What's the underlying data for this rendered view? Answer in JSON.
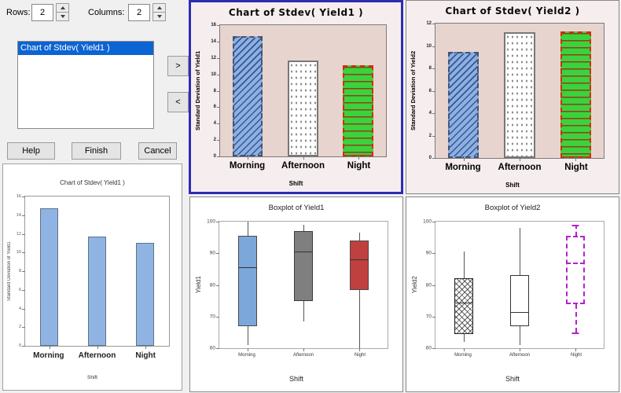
{
  "dialog": {
    "rows_label": "Rows:",
    "rows_value": "2",
    "columns_label": "Columns:",
    "columns_value": "2",
    "list_items": [
      {
        "label": "Chart of Stdev( Yield1 )",
        "selected": true
      }
    ],
    "move_right_label": ">",
    "move_left_label": "<",
    "help_label": "Help",
    "finish_label": "Finish",
    "cancel_label": "Cancel"
  },
  "colors": {
    "selection_border": "#2d2db0",
    "list_selection": "#0c64d2",
    "chart_panel_pink": "#f6edee",
    "plot_rose": "#e8d4cf",
    "bar_blue": "#8cb0e2",
    "bar_green": "#3bd23b",
    "bar_red_border": "#d42b10",
    "box_blue": "#7ba7da",
    "box_gray": "#7f7f7f",
    "box_red": "#c04040",
    "box_magenta": "#b81fd0",
    "preview_bar_blue": "#8fb4e3"
  },
  "chart_data": [
    {
      "id": "preview-bar-chart",
      "type": "bar",
      "variant": "preview",
      "title": "Chart of Stdev( Yield1 )",
      "xlabel": "Shift",
      "ylabel": "Standard Deviation of Yield1",
      "categories": [
        "Morning",
        "Afternoon",
        "Night"
      ],
      "values": [
        14.7,
        11.7,
        11.0
      ],
      "ylim": [
        0,
        16
      ],
      "ytick_step": 2,
      "bar_styles": [
        "solid-blue",
        "solid-blue",
        "solid-blue"
      ],
      "grid": false,
      "legend": "none"
    },
    {
      "id": "stdev-yield1",
      "type": "bar",
      "variant": "fancy",
      "selected": true,
      "title": "Chart of Stdev( Yield1 )",
      "xlabel": "Shift",
      "ylabel": "Standard Deviation of Yield1",
      "categories": [
        "Morning",
        "Afternoon",
        "Night"
      ],
      "values": [
        14.7,
        11.7,
        11.1
      ],
      "ylim": [
        0,
        16
      ],
      "ytick_step": 2,
      "bar_styles": [
        "hatch-blue",
        "dots-white",
        "stripes-green"
      ],
      "grid": false,
      "legend": "none"
    },
    {
      "id": "stdev-yield2",
      "type": "bar",
      "variant": "fancy",
      "title": "Chart of Stdev( Yield2 )",
      "xlabel": "Shift",
      "ylabel": "Standard Deviation of Yield2",
      "categories": [
        "Morning",
        "Afternoon",
        "Night"
      ],
      "values": [
        9.5,
        11.2,
        11.3
      ],
      "ylim": [
        0,
        12
      ],
      "ytick_step": 2,
      "bar_styles": [
        "hatch-blue",
        "dots-white",
        "stripes-green"
      ],
      "grid": false,
      "legend": "none"
    },
    {
      "id": "boxplot-yield1",
      "type": "boxplot",
      "variant": "plain",
      "title": "Boxplot of Yield1",
      "xlabel": "Shift",
      "ylabel": "Yield1",
      "ylim": [
        60,
        100
      ],
      "ytick_step": 10,
      "series": [
        {
          "category": "Morning",
          "low": 61,
          "q1": 67,
          "median": 85.5,
          "q3": 95.5,
          "high": 100,
          "style": "solid-blue"
        },
        {
          "category": "Afternoon",
          "low": 68.5,
          "q1": 75,
          "median": 90.5,
          "q3": 97,
          "high": 99,
          "style": "solid-gray"
        },
        {
          "category": "Night",
          "low": 60,
          "q1": 78.5,
          "median": 88,
          "q3": 94,
          "high": 96.5,
          "style": "solid-red"
        }
      ],
      "grid": false,
      "legend": "none"
    },
    {
      "id": "boxplot-yield2",
      "type": "boxplot",
      "variant": "plain",
      "title": "Boxplot of Yield2",
      "xlabel": "Shift",
      "ylabel": "Yield2",
      "ylim": [
        60,
        100
      ],
      "ytick_step": 10,
      "series": [
        {
          "category": "Morning",
          "low": 62,
          "q1": 64.5,
          "median": 74.5,
          "q3": 82,
          "high": 90.5,
          "style": "crosshatch"
        },
        {
          "category": "Afternoon",
          "low": 61,
          "q1": 67,
          "median": 71.5,
          "q3": 83,
          "high": 98,
          "style": "solid-white"
        },
        {
          "category": "Night",
          "low": 65,
          "q1": 74,
          "median": 87,
          "q3": 95.5,
          "high": 99,
          "style": "dashed-magenta"
        }
      ],
      "grid": false,
      "legend": "none"
    }
  ]
}
